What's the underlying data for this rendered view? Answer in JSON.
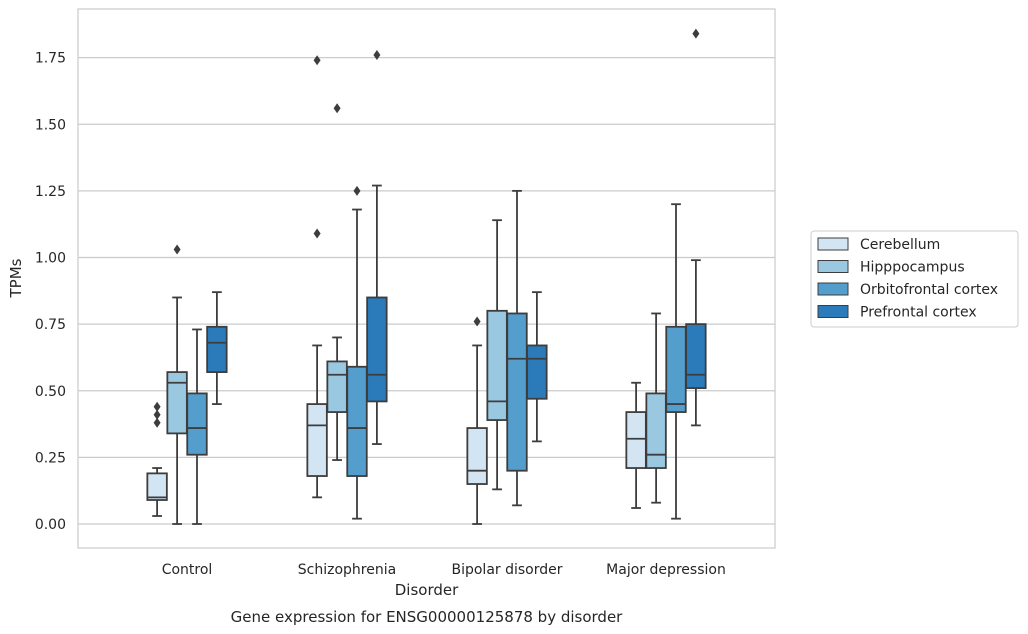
{
  "chart_data": {
    "type": "box",
    "title": "Gene expression for ENSG00000125878 by disorder",
    "xlabel": "Disorder",
    "ylabel": "TPMs",
    "ylim": [
      -0.09,
      1.94
    ],
    "yticks": [
      "0.00",
      "0.25",
      "0.50",
      "0.75",
      "1.00",
      "1.25",
      "1.50",
      "1.75"
    ],
    "grid": "horizontal",
    "legend_position": "right",
    "categories": [
      "Control",
      "Schizophrenia",
      "Bipolar disorder",
      "Major depression"
    ],
    "series": [
      {
        "name": "Cerebellum",
        "color": "#d3e4f3",
        "boxes": [
          {
            "whisker_low": 0.03,
            "q1": 0.09,
            "median": 0.1,
            "q3": 0.19,
            "whisker_high": 0.21,
            "outliers": [
              0.38,
              0.41,
              0.44
            ]
          },
          {
            "whisker_low": 0.1,
            "q1": 0.18,
            "median": 0.37,
            "q3": 0.45,
            "whisker_high": 0.67,
            "outliers": [
              1.09,
              1.74
            ]
          },
          {
            "whisker_low": 0.0,
            "q1": 0.15,
            "median": 0.2,
            "q3": 0.36,
            "whisker_high": 0.67,
            "outliers": [
              0.76
            ]
          },
          {
            "whisker_low": 0.06,
            "q1": 0.21,
            "median": 0.32,
            "q3": 0.42,
            "whisker_high": 0.53,
            "outliers": []
          }
        ]
      },
      {
        "name": "Hipppocampus",
        "color": "#9ac8e0",
        "boxes": [
          {
            "whisker_low": 0.0,
            "q1": 0.34,
            "median": 0.53,
            "q3": 0.57,
            "whisker_high": 0.85,
            "outliers": [
              1.03
            ]
          },
          {
            "whisker_low": 0.24,
            "q1": 0.42,
            "median": 0.56,
            "q3": 0.61,
            "whisker_high": 0.7,
            "outliers": [
              1.56
            ]
          },
          {
            "whisker_low": 0.13,
            "q1": 0.39,
            "median": 0.46,
            "q3": 0.8,
            "whisker_high": 1.14,
            "outliers": []
          },
          {
            "whisker_low": 0.08,
            "q1": 0.21,
            "median": 0.26,
            "q3": 0.49,
            "whisker_high": 0.79,
            "outliers": []
          }
        ]
      },
      {
        "name": "Orbitofrontal cortex",
        "color": "#539ecd",
        "boxes": [
          {
            "whisker_low": 0.0,
            "q1": 0.26,
            "median": 0.36,
            "q3": 0.49,
            "whisker_high": 0.73,
            "outliers": []
          },
          {
            "whisker_low": 0.02,
            "q1": 0.18,
            "median": 0.36,
            "q3": 0.59,
            "whisker_high": 1.18,
            "outliers": [
              1.25
            ]
          },
          {
            "whisker_low": 0.07,
            "q1": 0.2,
            "median": 0.62,
            "q3": 0.79,
            "whisker_high": 1.25,
            "outliers": []
          },
          {
            "whisker_low": 0.02,
            "q1": 0.42,
            "median": 0.45,
            "q3": 0.74,
            "whisker_high": 1.2,
            "outliers": []
          }
        ]
      },
      {
        "name": "Prefrontal cortex",
        "color": "#2b7bba",
        "boxes": [
          {
            "whisker_low": 0.45,
            "q1": 0.57,
            "median": 0.68,
            "q3": 0.74,
            "whisker_high": 0.87,
            "outliers": []
          },
          {
            "whisker_low": 0.3,
            "q1": 0.46,
            "median": 0.56,
            "q3": 0.85,
            "whisker_high": 1.27,
            "outliers": [
              1.76
            ]
          },
          {
            "whisker_low": 0.31,
            "q1": 0.47,
            "median": 0.62,
            "q3": 0.67,
            "whisker_high": 0.87,
            "outliers": []
          },
          {
            "whisker_low": 0.37,
            "q1": 0.51,
            "median": 0.56,
            "q3": 0.75,
            "whisker_high": 0.99,
            "outliers": [
              1.84
            ]
          }
        ]
      }
    ]
  }
}
